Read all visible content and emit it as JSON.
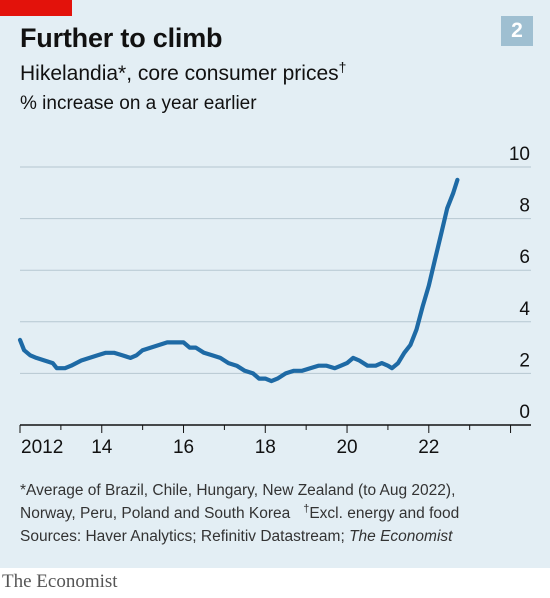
{
  "header": {
    "chart_number": "2",
    "title": "Further to climb",
    "subtitle": "Hikelandia*, core consumer prices",
    "subtitle_mark": "†",
    "unit": "% increase on a year earlier"
  },
  "footnote": {
    "line1": "*Average of Brazil, Chile, Hungary, New Zealand (to Aug 2022),",
    "line2": "Norway, Peru, Poland and South Korea",
    "dagger": "†",
    "dagger_note": "Excl. energy and food",
    "sources_prefix": "Sources: Haver Analytics; Refinitiv Datastream; ",
    "sources_italic": "The Economist"
  },
  "brand": "The Economist",
  "colors": {
    "background": "#e3eef4",
    "line": "#1e6aa5",
    "accent_red": "#e3120b",
    "gridline": "#b6c7d1",
    "badge": "#9fbfd1"
  },
  "chart_data": {
    "type": "line",
    "title": "Further to climb",
    "subtitle": "Hikelandia*, core consumer prices",
    "ylabel": "% increase on a year earlier",
    "xlim": [
      2012,
      2024.5
    ],
    "ylim": [
      0,
      10
    ],
    "yticks": [
      0,
      2,
      4,
      6,
      8,
      10
    ],
    "xticks": [
      2012,
      2014,
      2016,
      2018,
      2020,
      2022
    ],
    "xtick_labels": [
      "2012",
      "14",
      "16",
      "18",
      "20",
      "22"
    ],
    "grid": "horizontal",
    "y_axis_side": "right",
    "series": [
      {
        "x": [
          2012.0,
          2012.1,
          2012.25,
          2012.4,
          2012.6,
          2012.8,
          2012.9,
          2013.0,
          2013.1,
          2013.25,
          2013.5,
          2013.7,
          2013.9,
          2014.1,
          2014.3,
          2014.5,
          2014.7,
          2014.85,
          2015.0,
          2015.2,
          2015.4,
          2015.6,
          2015.8,
          2016.0,
          2016.15,
          2016.3,
          2016.5,
          2016.7,
          2016.9,
          2017.1,
          2017.3,
          2017.5,
          2017.7,
          2017.85,
          2018.0,
          2018.15,
          2018.3,
          2018.5,
          2018.7,
          2018.9,
          2019.1,
          2019.3,
          2019.5,
          2019.7,
          2019.85,
          2020.0,
          2020.15,
          2020.3,
          2020.5,
          2020.7,
          2020.85,
          2021.0,
          2021.1,
          2021.25,
          2021.4,
          2021.55,
          2021.7,
          2021.85,
          2022.0,
          2022.15,
          2022.3,
          2022.45,
          2022.6,
          2022.7
        ],
        "values": [
          3.3,
          2.9,
          2.7,
          2.6,
          2.5,
          2.4,
          2.2,
          2.2,
          2.2,
          2.3,
          2.5,
          2.6,
          2.7,
          2.8,
          2.8,
          2.7,
          2.6,
          2.7,
          2.9,
          3.0,
          3.1,
          3.2,
          3.2,
          3.2,
          3.0,
          3.0,
          2.8,
          2.7,
          2.6,
          2.4,
          2.3,
          2.1,
          2.0,
          1.8,
          1.8,
          1.7,
          1.8,
          2.0,
          2.1,
          2.1,
          2.2,
          2.3,
          2.3,
          2.2,
          2.3,
          2.4,
          2.6,
          2.5,
          2.3,
          2.3,
          2.4,
          2.3,
          2.2,
          2.4,
          2.8,
          3.1,
          3.7,
          4.6,
          5.4,
          6.4,
          7.4,
          8.4,
          9.0,
          9.5
        ]
      }
    ]
  }
}
